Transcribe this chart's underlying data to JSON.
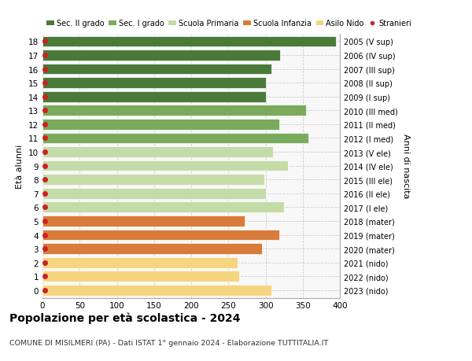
{
  "ages": [
    18,
    17,
    16,
    15,
    14,
    13,
    12,
    11,
    10,
    9,
    8,
    7,
    6,
    5,
    4,
    3,
    2,
    1,
    0
  ],
  "right_labels": [
    "2005 (V sup)",
    "2006 (IV sup)",
    "2007 (III sup)",
    "2008 (II sup)",
    "2009 (I sup)",
    "2010 (III med)",
    "2011 (II med)",
    "2012 (I med)",
    "2013 (V ele)",
    "2014 (IV ele)",
    "2015 (III ele)",
    "2016 (II ele)",
    "2017 (I ele)",
    "2018 (mater)",
    "2019 (mater)",
    "2020 (mater)",
    "2021 (nido)",
    "2022 (nido)",
    "2023 (nido)"
  ],
  "bar_values": [
    395,
    320,
    308,
    300,
    300,
    355,
    318,
    358,
    310,
    330,
    298,
    300,
    325,
    272,
    318,
    295,
    262,
    265,
    308
  ],
  "stranieri_x": [
    3,
    3,
    3,
    3,
    3,
    3,
    3,
    3,
    3,
    3,
    3,
    3,
    3,
    3,
    3,
    3,
    3,
    3,
    3
  ],
  "bar_colors": [
    "#4a7a3a",
    "#4a7a3a",
    "#4a7a3a",
    "#4a7a3a",
    "#4a7a3a",
    "#7aab5c",
    "#7aab5c",
    "#7aab5c",
    "#c5dba8",
    "#c5dba8",
    "#c5dba8",
    "#c5dba8",
    "#c5dba8",
    "#d97b3a",
    "#d97b3a",
    "#d97b3a",
    "#f5d580",
    "#f5d580",
    "#f5d580"
  ],
  "legend_labels": [
    "Sec. II grado",
    "Sec. I grado",
    "Scuola Primaria",
    "Scuola Infanzia",
    "Asilo Nido",
    "Stranieri"
  ],
  "legend_colors": [
    "#4a7a3a",
    "#7aab5c",
    "#c5dba8",
    "#d97b3a",
    "#f5d580",
    "#cc2222"
  ],
  "ylabel_left": "Età alunni",
  "ylabel_right": "Anni di nascita",
  "title": "Popolazione per età scolastica - 2024",
  "subtitle": "COMUNE DI MISILMERI (PA) - Dati ISTAT 1° gennaio 2024 - Elaborazione TUTTITALIA.IT",
  "xlim": [
    0,
    400
  ],
  "xticks": [
    0,
    50,
    100,
    150,
    200,
    250,
    300,
    350,
    400
  ],
  "stranieri_color": "#cc2222",
  "stranieri_size": 4,
  "bg_color": "#ffffff",
  "plot_bg": "#f8f8f8",
  "grid_color": "#cccccc",
  "bar_height": 0.78
}
